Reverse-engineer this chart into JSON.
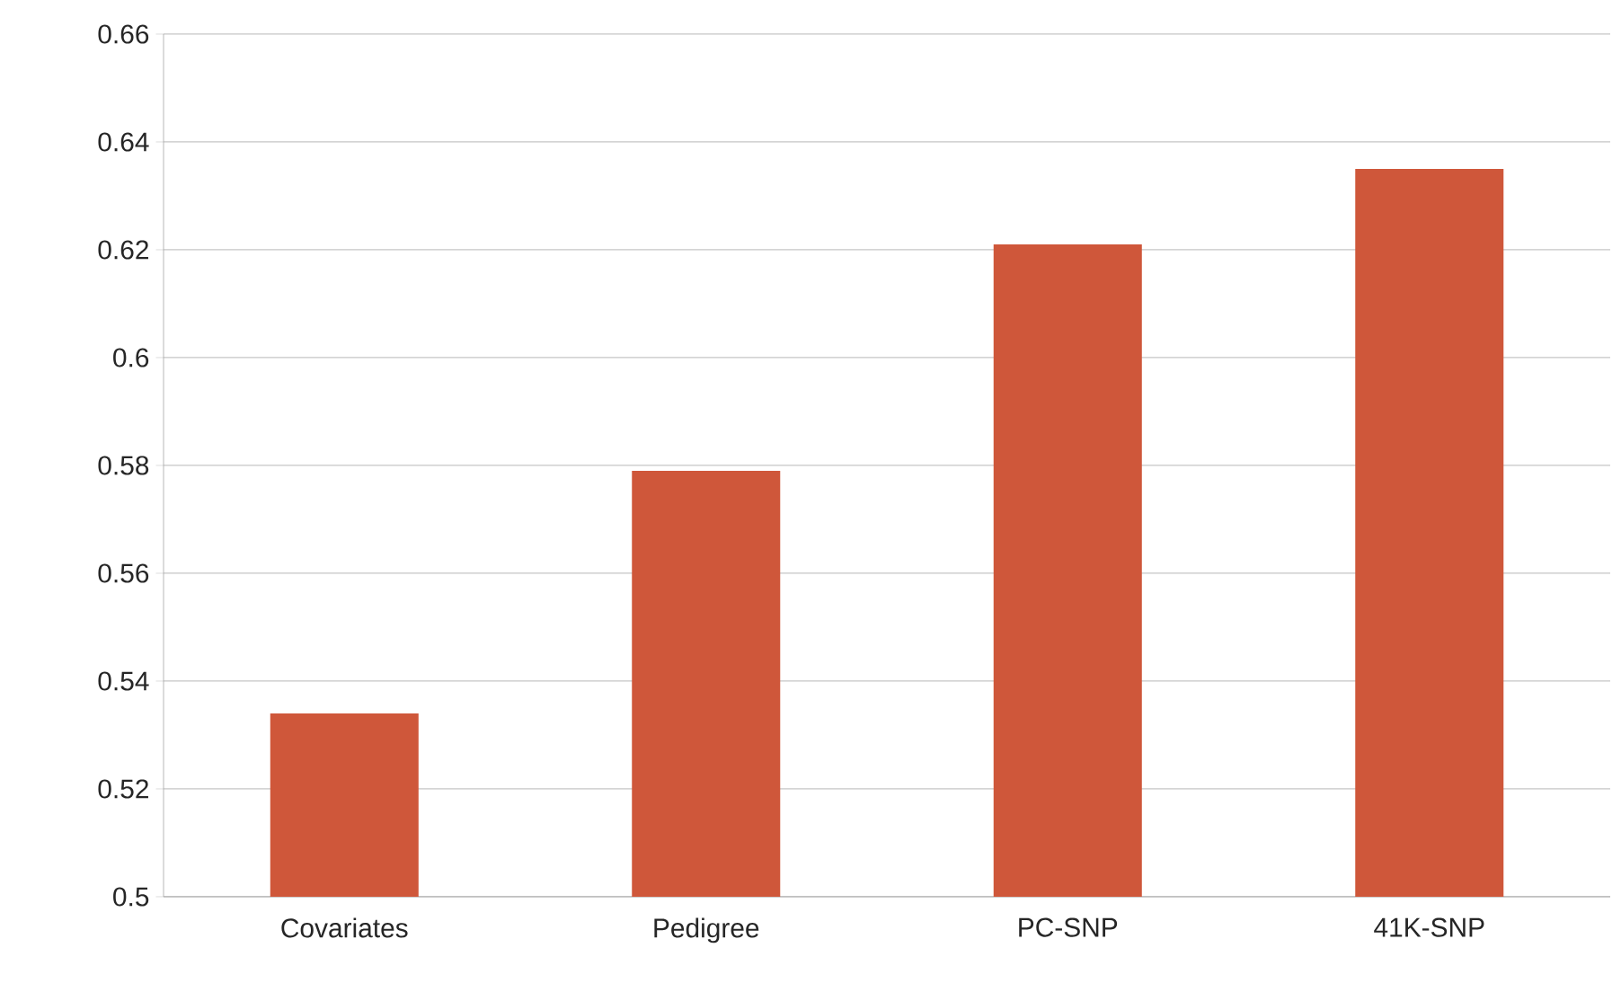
{
  "chart_data": {
    "type": "bar",
    "categories": [
      "Covariates",
      "Pedigree",
      "PC-SNP",
      "41K-SNP"
    ],
    "values": [
      0.534,
      0.579,
      0.621,
      0.635
    ],
    "color": "#cf573a",
    "ylim": [
      0.5,
      0.66
    ],
    "yticks": [
      0.5,
      0.52,
      0.54,
      0.56,
      0.58,
      0.6,
      0.62,
      0.64,
      0.66
    ],
    "grid": "y"
  }
}
